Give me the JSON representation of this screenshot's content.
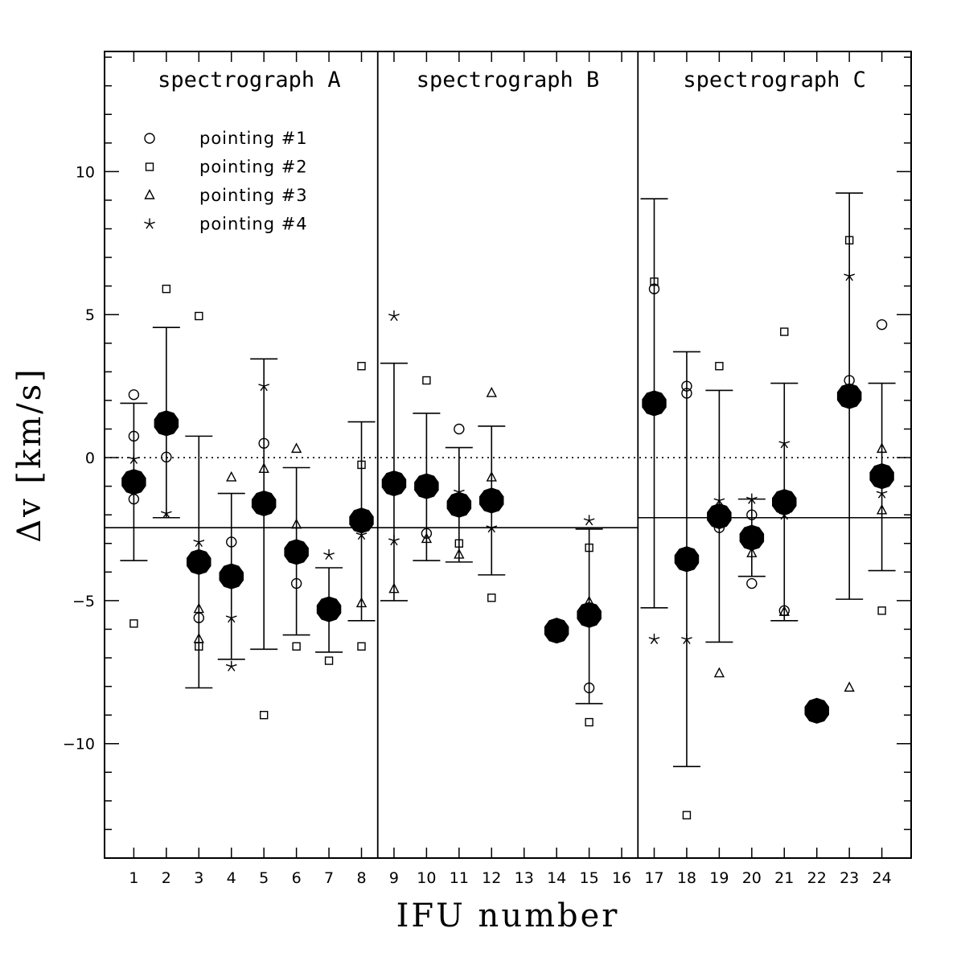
{
  "chart_data": {
    "type": "scatter",
    "xlabel": "IFU number",
    "ylabel": "Δv [km/s]",
    "ylim": [
      -14,
      14.2
    ],
    "xlim": [
      0.1,
      24.9
    ],
    "yticks": [
      10,
      5,
      0,
      -5,
      -10
    ],
    "xticks": [
      1,
      2,
      3,
      4,
      5,
      6,
      7,
      8,
      9,
      10,
      11,
      12,
      13,
      14,
      15,
      16,
      17,
      18,
      19,
      20,
      21,
      22,
      23,
      24
    ],
    "zero_line": "dotted",
    "panels": [
      {
        "label": "spectrograph A",
        "x_range": [
          0.1,
          8.5
        ],
        "mean": -2.45
      },
      {
        "label": "spectrograph B",
        "x_range": [
          8.5,
          16.5
        ],
        "mean": -2.45
      },
      {
        "label": "spectrograph C",
        "x_range": [
          16.5,
          24.9
        ],
        "mean": -2.1
      }
    ],
    "legend": {
      "position": "top-left",
      "entries": [
        {
          "marker": "circle",
          "label": "pointing #1"
        },
        {
          "marker": "square",
          "label": "pointing #2"
        },
        {
          "marker": "triangle",
          "label": "pointing #3"
        },
        {
          "marker": "star",
          "label": "pointing #4"
        }
      ]
    },
    "series": [
      {
        "marker": "circle",
        "points": [
          [
            1,
            2.2
          ],
          [
            1,
            0.75
          ],
          [
            1,
            -1.45
          ],
          [
            2,
            0.02
          ],
          [
            3,
            -5.6
          ],
          [
            4,
            -2.95
          ],
          [
            5,
            0.5
          ],
          [
            6,
            -4.4
          ],
          [
            10,
            -2.65
          ],
          [
            11,
            1.0
          ],
          [
            15,
            -8.05
          ],
          [
            17,
            5.9
          ],
          [
            18,
            2.5
          ],
          [
            18,
            2.25
          ],
          [
            19,
            -2.45
          ],
          [
            20,
            -2.0
          ],
          [
            20,
            -4.4
          ],
          [
            21,
            -5.35
          ],
          [
            23,
            2.7
          ],
          [
            24,
            4.65
          ]
        ]
      },
      {
        "marker": "square",
        "points": [
          [
            1,
            -5.8
          ],
          [
            2,
            5.9
          ],
          [
            3,
            4.95
          ],
          [
            3,
            -6.6
          ],
          [
            5,
            -9.0
          ],
          [
            6,
            -6.6
          ],
          [
            7,
            -7.1
          ],
          [
            8,
            3.2
          ],
          [
            8,
            -0.25
          ],
          [
            8,
            -6.6
          ],
          [
            10,
            2.7
          ],
          [
            11,
            -3.0
          ],
          [
            12,
            -4.9
          ],
          [
            15,
            -3.15
          ],
          [
            15,
            -9.25
          ],
          [
            17,
            6.15
          ],
          [
            18,
            -12.5
          ],
          [
            19,
            3.2
          ],
          [
            21,
            4.4
          ],
          [
            23,
            7.6
          ],
          [
            24,
            -5.35
          ]
        ]
      },
      {
        "marker": "triangle",
        "points": [
          [
            3,
            -5.3
          ],
          [
            3,
            -6.35
          ],
          [
            4,
            -0.7
          ],
          [
            5,
            -0.4
          ],
          [
            6,
            0.3
          ],
          [
            6,
            -2.35
          ],
          [
            8,
            -5.1
          ],
          [
            9,
            -4.6
          ],
          [
            10,
            -2.85
          ],
          [
            11,
            -3.4
          ],
          [
            12,
            2.25
          ],
          [
            12,
            -0.7
          ],
          [
            15,
            -5.05
          ],
          [
            19,
            -7.55
          ],
          [
            20,
            -3.35
          ],
          [
            21,
            -5.4
          ],
          [
            23,
            -8.05
          ],
          [
            24,
            0.3
          ],
          [
            24,
            -1.85
          ]
        ]
      },
      {
        "marker": "star",
        "points": [
          [
            1,
            -0.05
          ],
          [
            2,
            -1.95
          ],
          [
            3,
            -2.95
          ],
          [
            4,
            -5.6
          ],
          [
            4,
            -7.3
          ],
          [
            5,
            2.5
          ],
          [
            7,
            -3.4
          ],
          [
            8,
            -2.7
          ],
          [
            9,
            4.95
          ],
          [
            9,
            -2.9
          ],
          [
            11,
            -1.2
          ],
          [
            12,
            -2.45
          ],
          [
            15,
            -2.2
          ],
          [
            17,
            -6.35
          ],
          [
            18,
            -6.35
          ],
          [
            19,
            -1.5
          ],
          [
            20,
            -1.45
          ],
          [
            21,
            0.5
          ],
          [
            21,
            -2.0
          ],
          [
            23,
            6.35
          ],
          [
            24,
            -1.25
          ]
        ]
      }
    ],
    "means": [
      {
        "ifu": 1,
        "value": -0.85,
        "err_low": -3.6,
        "err_high": 1.9
      },
      {
        "ifu": 2,
        "value": 1.2,
        "err_low": -2.1,
        "err_high": 4.55
      },
      {
        "ifu": 3,
        "value": -3.65,
        "err_low": -8.05,
        "err_high": 0.75
      },
      {
        "ifu": 4,
        "value": -4.15,
        "err_low": -7.05,
        "err_high": -1.25
      },
      {
        "ifu": 5,
        "value": -1.6,
        "err_low": -6.7,
        "err_high": 3.45
      },
      {
        "ifu": 6,
        "value": -3.3,
        "err_low": -6.2,
        "err_high": -0.35
      },
      {
        "ifu": 7,
        "value": -5.3,
        "err_low": -6.8,
        "err_high": -3.85
      },
      {
        "ifu": 8,
        "value": -2.2,
        "err_low": -5.7,
        "err_high": 1.25
      },
      {
        "ifu": 9,
        "value": -0.9,
        "err_low": -5.0,
        "err_high": 3.3
      },
      {
        "ifu": 10,
        "value": -1.0,
        "err_low": -3.6,
        "err_high": 1.55
      },
      {
        "ifu": 11,
        "value": -1.65,
        "err_low": -3.65,
        "err_high": 0.35
      },
      {
        "ifu": 12,
        "value": -1.5,
        "err_low": -4.1,
        "err_high": 1.1
      },
      {
        "ifu": 14,
        "value": -6.05
      },
      {
        "ifu": 15,
        "value": -5.5,
        "err_low": -8.6,
        "err_high": -2.5
      },
      {
        "ifu": 17,
        "value": 1.9,
        "err_low": -5.25,
        "err_high": 9.05
      },
      {
        "ifu": 18,
        "value": -3.55,
        "err_low": -10.8,
        "err_high": 3.7
      },
      {
        "ifu": 19,
        "value": -2.05,
        "err_low": -6.45,
        "err_high": 2.35
      },
      {
        "ifu": 20,
        "value": -2.8,
        "err_low": -4.15,
        "err_high": -1.45
      },
      {
        "ifu": 21,
        "value": -1.55,
        "err_low": -5.7,
        "err_high": 2.6
      },
      {
        "ifu": 22,
        "value": -8.85
      },
      {
        "ifu": 23,
        "value": 2.15,
        "err_low": -4.95,
        "err_high": 9.25
      },
      {
        "ifu": 24,
        "value": -0.65,
        "err_low": -3.95,
        "err_high": 2.6
      }
    ]
  }
}
